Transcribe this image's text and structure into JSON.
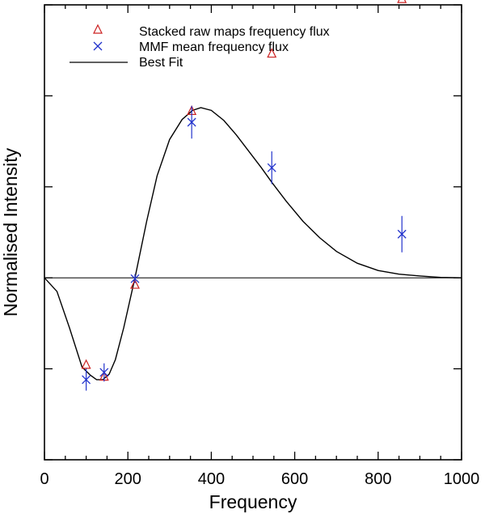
{
  "chart_data": {
    "type": "scatter",
    "title": "",
    "xlabel": "Frequency",
    "ylabel": "Normalised Intensity",
    "xlim": [
      0,
      1000
    ],
    "ylim": [
      -2,
      3
    ],
    "xticks": [
      0,
      200,
      400,
      600,
      800,
      1000
    ],
    "xtick_labels": [
      "0",
      "200",
      "400",
      "600",
      "800",
      "1000"
    ],
    "yticks": [
      -2,
      -1,
      0,
      1,
      2,
      3
    ],
    "show_y_tick_labels": false,
    "grid": false,
    "legend_position": "top-left",
    "legend": [
      "Stacked raw maps frequency flux",
      "MMF mean frequency flux",
      "Best Fit"
    ],
    "colors": {
      "triangles": "#cc2222",
      "crosses": "#2233cc",
      "fit": "#000000"
    },
    "series": [
      {
        "name": "Stacked raw maps frequency flux",
        "marker": "triangle",
        "points": [
          {
            "x": 100,
            "y": -0.95
          },
          {
            "x": 143,
            "y": -1.08
          },
          {
            "x": 217,
            "y": -0.07
          },
          {
            "x": 353,
            "y": 1.84
          },
          {
            "x": 545,
            "y": 2.47
          },
          {
            "x": 857,
            "y": 3.07
          }
        ]
      },
      {
        "name": "MMF mean frequency flux",
        "marker": "cross",
        "points": [
          {
            "x": 100,
            "y": -1.12,
            "err": 0.12
          },
          {
            "x": 143,
            "y": -1.04,
            "err": 0.1
          },
          {
            "x": 217,
            "y": -0.01,
            "err": 0.05
          },
          {
            "x": 353,
            "y": 1.71,
            "err": 0.18
          },
          {
            "x": 545,
            "y": 1.21,
            "err": 0.18
          },
          {
            "x": 857,
            "y": 0.48,
            "err": 0.2
          }
        ]
      },
      {
        "name": "Best Fit",
        "marker": "line",
        "points": [
          {
            "x": 0,
            "y": 0.0
          },
          {
            "x": 30,
            "y": -0.15
          },
          {
            "x": 60,
            "y": -0.55
          },
          {
            "x": 90,
            "y": -0.98
          },
          {
            "x": 110,
            "y": -1.07
          },
          {
            "x": 125,
            "y": -1.12
          },
          {
            "x": 140,
            "y": -1.12
          },
          {
            "x": 155,
            "y": -1.06
          },
          {
            "x": 170,
            "y": -0.9
          },
          {
            "x": 190,
            "y": -0.55
          },
          {
            "x": 217,
            "y": 0.0
          },
          {
            "x": 245,
            "y": 0.62
          },
          {
            "x": 270,
            "y": 1.12
          },
          {
            "x": 300,
            "y": 1.52
          },
          {
            "x": 330,
            "y": 1.74
          },
          {
            "x": 355,
            "y": 1.84
          },
          {
            "x": 375,
            "y": 1.87
          },
          {
            "x": 400,
            "y": 1.84
          },
          {
            "x": 430,
            "y": 1.73
          },
          {
            "x": 460,
            "y": 1.57
          },
          {
            "x": 490,
            "y": 1.39
          },
          {
            "x": 520,
            "y": 1.21
          },
          {
            "x": 545,
            "y": 1.05
          },
          {
            "x": 580,
            "y": 0.84
          },
          {
            "x": 620,
            "y": 0.62
          },
          {
            "x": 660,
            "y": 0.44
          },
          {
            "x": 700,
            "y": 0.29
          },
          {
            "x": 750,
            "y": 0.16
          },
          {
            "x": 800,
            "y": 0.08
          },
          {
            "x": 850,
            "y": 0.04
          },
          {
            "x": 900,
            "y": 0.02
          },
          {
            "x": 950,
            "y": 0.005
          },
          {
            "x": 1000,
            "y": 0.0
          }
        ]
      }
    ]
  }
}
